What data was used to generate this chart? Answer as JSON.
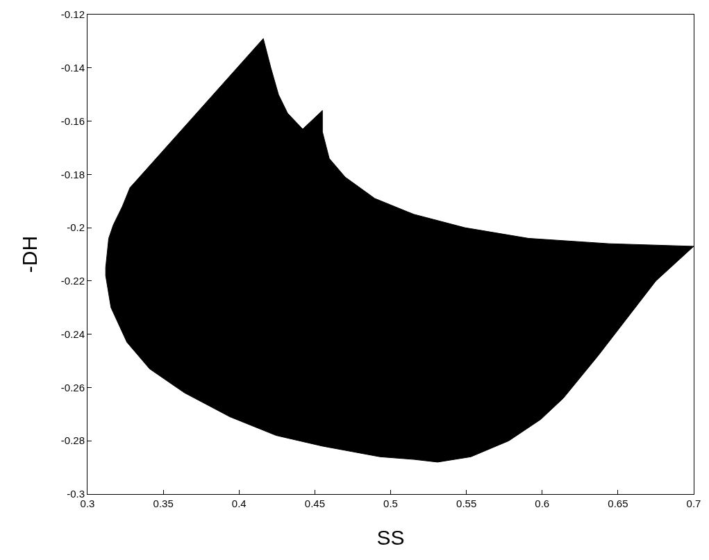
{
  "chart_data": {
    "type": "area",
    "xlabel": "SS",
    "ylabel": "-DH",
    "xlim": [
      0.3,
      0.7
    ],
    "xticks": [
      0.3,
      0.35,
      0.4,
      0.45,
      0.5,
      0.55,
      0.6,
      0.65,
      0.7
    ],
    "ylim": [
      -0.3,
      -0.12
    ],
    "yticks": [
      -0.3,
      -0.28,
      -0.26,
      -0.24,
      -0.22,
      -0.2,
      -0.18,
      -0.16,
      -0.14,
      -0.12
    ],
    "series": [
      {
        "color": "#000000",
        "x": [
          0.416,
          0.421,
          0.426,
          0.432,
          0.442,
          0.455,
          0.455,
          0.4595,
          0.47,
          0.4895,
          0.511,
          0.5155,
          0.549,
          0.591,
          0.644,
          0.7,
          0.675,
          0.637,
          0.614,
          0.599,
          0.578,
          0.553,
          0.531,
          0.5155,
          0.493,
          0.455,
          0.4245,
          0.394,
          0.364,
          0.341,
          0.326,
          0.3155,
          0.312,
          0.312,
          0.314,
          0.317,
          0.323,
          0.328,
          0.416
        ],
        "values": [
          -0.129,
          -0.14,
          -0.15,
          -0.157,
          -0.163,
          -0.156,
          -0.164,
          -0.174,
          -0.181,
          -0.189,
          -0.194,
          -0.195,
          -0.2,
          -0.204,
          -0.206,
          -0.207,
          -0.22,
          -0.248,
          -0.264,
          -0.272,
          -0.28,
          -0.286,
          -0.288,
          -0.287,
          -0.286,
          -0.282,
          -0.278,
          -0.271,
          -0.262,
          -0.253,
          -0.243,
          -0.23,
          -0.218,
          -0.215,
          -0.204,
          -0.199,
          -0.192,
          -0.185,
          -0.129
        ]
      }
    ]
  }
}
